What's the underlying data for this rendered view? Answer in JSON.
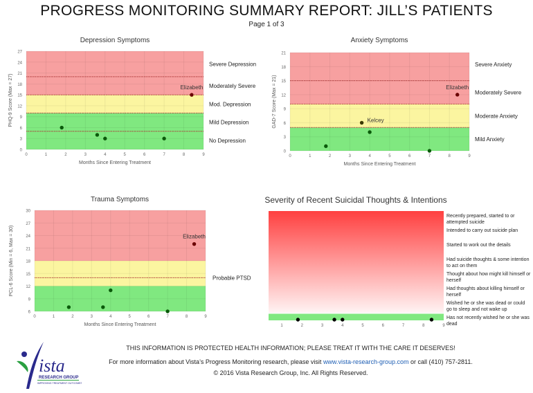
{
  "header": {
    "title": "PROGRESS MONITORING SUMMARY REPORT:  JILL’S PATIENTS",
    "page": "Page 1 of 3"
  },
  "colors": {
    "red": "#f7a0a0",
    "yellow": "#fbf5a0",
    "green": "#80e880",
    "point": "#0a5a0a",
    "point_red": "#6a0000",
    "link": "#1f5fb4"
  },
  "chart_data": [
    {
      "type": "scatter",
      "title": "Depression Symptoms",
      "xlabel": "Months Since Entering Treatment",
      "ylabel": "PHQ-9 Score (Max = 27)",
      "xlim": [
        0,
        9
      ],
      "ylim": [
        0,
        27
      ],
      "xticks": [
        0,
        1,
        2,
        3,
        4,
        5,
        6,
        7,
        8,
        9
      ],
      "yticks": [
        0,
        3,
        6,
        9,
        12,
        15,
        18,
        21,
        24,
        27
      ],
      "bands": [
        {
          "from": 0,
          "to": 10,
          "color": "green"
        },
        {
          "from": 10,
          "to": 15,
          "color": "yellow"
        },
        {
          "from": 15,
          "to": 27,
          "color": "red"
        }
      ],
      "cutoff_lines": [
        5,
        10,
        15,
        20
      ],
      "band_labels": [
        {
          "text": "Severe Depression",
          "y": 23.5
        },
        {
          "text": "Moderately Severe",
          "y": 17.5
        },
        {
          "text": "Mod. Depression",
          "y": 12.5
        },
        {
          "text": "Mild Depression",
          "y": 7.5
        },
        {
          "text": "No Depression",
          "y": 2.5
        }
      ],
      "points": [
        {
          "x": 1.8,
          "y": 6
        },
        {
          "x": 3.6,
          "y": 4
        },
        {
          "x": 4,
          "y": 3
        },
        {
          "x": 7,
          "y": 3
        },
        {
          "x": 8.4,
          "y": 15,
          "label": "Elizabeth"
        }
      ]
    },
    {
      "type": "scatter",
      "title": "Anxiety Symptoms",
      "xlabel": "Months Since Entering Treatment",
      "ylabel": "GAD-7 Score (Max = 21)",
      "xlim": [
        0,
        9
      ],
      "ylim": [
        0,
        21
      ],
      "xticks": [
        0,
        1,
        2,
        3,
        4,
        5,
        6,
        7,
        8,
        9
      ],
      "yticks": [
        0,
        3,
        6,
        9,
        12,
        15,
        18,
        21
      ],
      "bands": [
        {
          "from": 0,
          "to": 5,
          "color": "green"
        },
        {
          "from": 5,
          "to": 10,
          "color": "yellow"
        },
        {
          "from": 10,
          "to": 21,
          "color": "red"
        }
      ],
      "cutoff_lines": [
        5,
        10,
        15
      ],
      "band_labels": [
        {
          "text": "Severe Anxiety",
          "y": 18.5
        },
        {
          "text": "Moderately Severe",
          "y": 12.5
        },
        {
          "text": "Moderate Anxiety",
          "y": 7.5
        },
        {
          "text": "Mild Anxiety",
          "y": 2.5
        }
      ],
      "points": [
        {
          "x": 1.8,
          "y": 1
        },
        {
          "x": 3.6,
          "y": 6,
          "label": "Kelcey"
        },
        {
          "x": 4,
          "y": 4
        },
        {
          "x": 7,
          "y": 0
        },
        {
          "x": 8.4,
          "y": 12,
          "label": "Elizabeth"
        }
      ]
    },
    {
      "type": "scatter",
      "title": "Trauma Symptoms",
      "xlabel": "Months Since Entering Treatment",
      "ylabel": "PCL-6 Score (Min = 6, Max = 30)",
      "xlim": [
        0,
        9
      ],
      "ylim": [
        6,
        30
      ],
      "xticks": [
        0,
        1,
        2,
        3,
        4,
        5,
        6,
        7,
        8,
        9
      ],
      "yticks": [
        6,
        9,
        12,
        15,
        18,
        21,
        24,
        27,
        30
      ],
      "bands": [
        {
          "from": 6,
          "to": 12,
          "color": "green"
        },
        {
          "from": 12,
          "to": 18,
          "color": "yellow"
        },
        {
          "from": 18,
          "to": 30,
          "color": "red"
        }
      ],
      "cutoff_lines": [
        14
      ],
      "band_labels": [
        {
          "text": "Probable PTSD",
          "y": 14
        }
      ],
      "points": [
        {
          "x": 1.8,
          "y": 7
        },
        {
          "x": 3.6,
          "y": 7
        },
        {
          "x": 4,
          "y": 11
        },
        {
          "x": 7,
          "y": 6
        },
        {
          "x": 8.4,
          "y": 22,
          "label": "Elizabeth"
        }
      ]
    },
    {
      "type": "scatter",
      "title": "Severity of Recent Suicidal Thoughts & Intentions",
      "xlabel": "",
      "ylabel": "",
      "xlim": [
        0.35,
        9
      ],
      "ylim": [
        0,
        7.5
      ],
      "xticks": [
        1,
        2,
        3,
        4,
        5,
        6,
        7,
        8,
        9
      ],
      "yticks": [],
      "gradient": true,
      "band_labels": [
        {
          "text": "Recently prepared, started to or attempted suicide",
          "lines": [
            "Recently prepared, started to",
            "attempted suicide"
          ],
          "y": 7
        },
        {
          "text": "Intended to carry out suicide plan",
          "lines": [
            "Intended to carry out suicide",
            "plan"
          ],
          "y": 6
        },
        {
          "text": "Started to work out the details",
          "lines": [
            "Started to work out the details"
          ],
          "y": 5
        },
        {
          "text": "Had suicide thoughts & some intention to act on them",
          "lines": [
            "Had suicide thoughts & some",
            "intention to act on them"
          ],
          "y": 4
        },
        {
          "text": "Thought about how might kill himself or herself",
          "lines": [
            "Thought about how might kill",
            "himself or herself"
          ],
          "y": 3
        },
        {
          "text": "Had thoughts about killing himself or herself",
          "lines": [
            "Had thoughts about killing",
            "himself or herself"
          ],
          "y": 2
        },
        {
          "text": "Wished he or she was dead or could go to sleep and not wake up",
          "lines": [
            "Wished he or she was dead or",
            "could go to sleep and not wake up"
          ],
          "y": 1
        },
        {
          "text": "Has not recently wished he or she was dead",
          "lines": [
            "Has not recently wished he or",
            "she was dead"
          ],
          "y": 0
        }
      ],
      "points": [
        {
          "x": 1.8,
          "y": 0
        },
        {
          "x": 3.6,
          "y": 0
        },
        {
          "x": 4,
          "y": 0
        },
        {
          "x": 8.4,
          "y": 0
        }
      ]
    }
  ],
  "footer": {
    "notice": "THIS INFORMATION IS PROTECTED HEALTH INFORMATION; PLEASE TREAT IT WITH THE CARE IT DESERVES!",
    "info_before": "For more information about Vista’s Progress Monitoring research, please visit ",
    "link": "www.vista-research-group.com",
    "info_after": " or call (410) 757-2811.",
    "copyright": "© 2016 Vista Research Group, Inc.   All Rights Reserved."
  },
  "logo": {
    "name": "Vista",
    "sub": "RESEARCH GROUP",
    "tagline": "IMPROVING TREATMENT OUTCOMES"
  }
}
